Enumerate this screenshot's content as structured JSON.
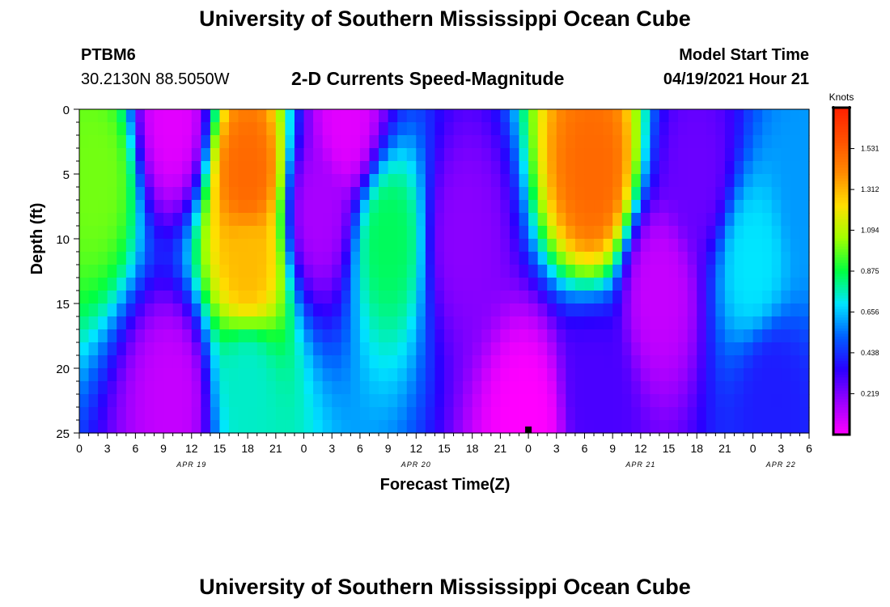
{
  "page": {
    "title_top": "University of Southern Mississippi Ocean Cube",
    "title_bottom": "University of Southern Mississippi Ocean Cube",
    "station_id": "PTBM6",
    "station_coords": "30.2130N  88.5050W",
    "model_start_label": "Model Start Time",
    "model_start_value": "04/19/2021 Hour 21"
  },
  "chart_data": {
    "type": "heatmap",
    "title": "2-D Currents Speed-Magnitude",
    "xlabel": "Forecast Time(Z)",
    "ylabel": "Depth (ft)",
    "x_tick_labels": [
      "0",
      "3",
      "6",
      "9",
      "12",
      "15",
      "18",
      "21",
      "0",
      "3",
      "6",
      "9",
      "12",
      "15",
      "18",
      "21",
      "0",
      "3",
      "6",
      "9",
      "12",
      "15",
      "18",
      "21",
      "0",
      "3",
      "6"
    ],
    "date_labels": [
      {
        "label": "APR 19",
        "tick_index": 4
      },
      {
        "label": "APR 20",
        "tick_index": 12
      },
      {
        "label": "APR 21",
        "tick_index": 20
      },
      {
        "label": "APR 22",
        "tick_index": 25
      }
    ],
    "x_range_hours": [
      0,
      78
    ],
    "y_ticks": [
      0,
      5,
      10,
      15,
      20,
      25
    ],
    "ylim": [
      0,
      25
    ],
    "y_inverted": true,
    "current_time_marker_hour": 48,
    "colorbar": {
      "unit": "Knots",
      "ticks": [
        1.531,
        1.312,
        1.094,
        0.875,
        0.656,
        0.438,
        0.219
      ],
      "range": [
        0,
        1.75
      ],
      "colors": [
        "#ff00ff",
        "#9a00ff",
        "#2a00ff",
        "#0060ff",
        "#00e6ff",
        "#00ff40",
        "#a0ff00",
        "#ffe000",
        "#ff8a00",
        "#ff5000",
        "#ff2000"
      ]
    },
    "grid": "off",
    "legend_placement": "right",
    "features": [
      {
        "time_h": 2,
        "depth_ft": 5,
        "speed": 1.0
      },
      {
        "time_h": 10,
        "depth_ft": 1,
        "speed": 0.05
      },
      {
        "time_h": 10,
        "depth_ft": 22,
        "speed": 0.1
      },
      {
        "time_h": 18,
        "depth_ft": 5,
        "speed": 1.5
      },
      {
        "time_h": 18,
        "depth_ft": 12,
        "speed": 1.3
      },
      {
        "time_h": 18,
        "depth_ft": 21,
        "speed": 0.75
      },
      {
        "time_h": 25.5,
        "depth_ft": 8,
        "speed": 0.15
      },
      {
        "time_h": 28.5,
        "depth_ft": 1,
        "speed": 0.05
      },
      {
        "time_h": 33,
        "depth_ft": 10,
        "speed": 0.85
      },
      {
        "time_h": 41,
        "depth_ft": 10,
        "speed": 0.2
      },
      {
        "time_h": 48,
        "depth_ft": 24,
        "speed": 0.0
      },
      {
        "time_h": 55,
        "depth_ft": 5,
        "speed": 1.5
      },
      {
        "time_h": 55,
        "depth_ft": 22,
        "speed": 0.3
      },
      {
        "time_h": 62,
        "depth_ft": 14,
        "speed": 0.1
      },
      {
        "time_h": 66,
        "depth_ft": 5,
        "speed": 0.25
      },
      {
        "time_h": 72,
        "depth_ft": 12,
        "speed": 0.7
      },
      {
        "time_h": 74,
        "depth_ft": 22,
        "speed": 0.4
      },
      {
        "time_h": 78,
        "depth_ft": 7,
        "speed": 0.6
      }
    ]
  }
}
